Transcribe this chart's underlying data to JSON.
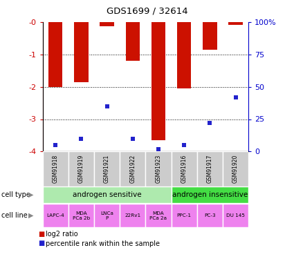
{
  "title": "GDS1699 / 32614",
  "samples": [
    "GSM91918",
    "GSM91919",
    "GSM91921",
    "GSM91922",
    "GSM91923",
    "GSM91916",
    "GSM91917",
    "GSM91920"
  ],
  "log2_ratio": [
    -2.0,
    -1.85,
    -0.12,
    -1.2,
    -3.65,
    -2.05,
    -0.85,
    -0.08
  ],
  "percentile_rank": [
    5,
    10,
    35,
    10,
    2,
    5,
    22,
    42
  ],
  "cell_types": [
    {
      "label": "androgen sensitive",
      "span": [
        0,
        5
      ],
      "color": "#aeeaae"
    },
    {
      "label": "androgen insensitive",
      "span": [
        5,
        8
      ],
      "color": "#44dd44"
    }
  ],
  "cell_lines": [
    "LAPC-4",
    "MDA\nPCa 2b",
    "LNCa\nP",
    "22Rv1",
    "MDA\nPCa 2a",
    "PPC-1",
    "PC-3",
    "DU 145"
  ],
  "cell_line_color": "#ee82ee",
  "sample_bg_color": "#cccccc",
  "ylim_left": [
    -4,
    0
  ],
  "ylim_right": [
    0,
    100
  ],
  "yticks_left": [
    0,
    -1,
    -2,
    -3,
    -4
  ],
  "ytick_labels_left": [
    "-0",
    "-1",
    "-2",
    "-3",
    "-4"
  ],
  "yticks_right": [
    100,
    75,
    50,
    25,
    0
  ],
  "ytick_labels_right": [
    "100%",
    "75",
    "50",
    "25",
    "0"
  ],
  "bar_color": "#cc1100",
  "blue_color": "#2222cc",
  "legend_log2": "log2 ratio",
  "legend_pct": "percentile rank within the sample",
  "left_axis_color": "#cc0000",
  "right_axis_color": "#0000cc"
}
